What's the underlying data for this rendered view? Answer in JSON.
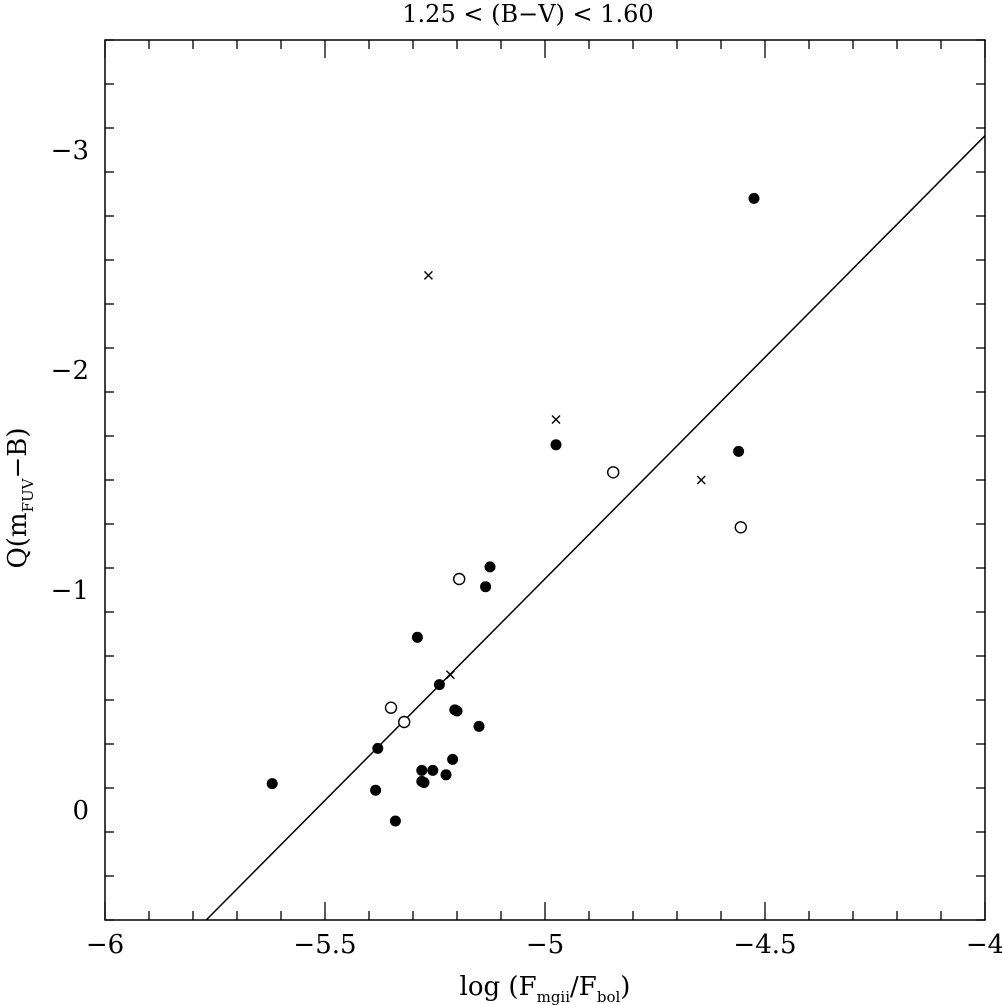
{
  "chart_data": {
    "type": "scatter",
    "title": "1.25 < (B−V) < 1.60",
    "xlabel": {
      "prefix": "log (F",
      "sub1": "mgii",
      "mid": "/F",
      "sub2": "bol",
      "suffix": ")"
    },
    "ylabel": {
      "prefix": "Q(m",
      "sub": "FUV",
      "suffix": "−B)"
    },
    "xlim": [
      -6,
      -4
    ],
    "ylim": [
      0.5,
      -3.5
    ],
    "x_ticks": [
      -6,
      -5.5,
      -5,
      -4.5,
      -4
    ],
    "x_tick_labels": [
      "−6",
      "−5.5",
      "−5",
      "−4.5",
      "−4"
    ],
    "y_ticks": [
      -3,
      -2,
      -1,
      0
    ],
    "y_tick_labels": [
      "−3",
      "−2",
      "−1",
      "0"
    ],
    "series": [
      {
        "marker": "filled-circle",
        "points": [
          [
            -5.62,
            -0.12
          ],
          [
            -5.38,
            -0.28
          ],
          [
            -5.385,
            -0.09
          ],
          [
            -5.34,
            0.05
          ],
          [
            -5.29,
            -0.785
          ],
          [
            -5.28,
            -0.18
          ],
          [
            -5.28,
            -0.13
          ],
          [
            -5.275,
            -0.125
          ],
          [
            -5.255,
            -0.18
          ],
          [
            -5.24,
            -0.57
          ],
          [
            -5.225,
            -0.16
          ],
          [
            -5.21,
            -0.23
          ],
          [
            -5.205,
            -0.455
          ],
          [
            -5.2,
            -0.45
          ],
          [
            -5.15,
            -0.38
          ],
          [
            -5.135,
            -1.015
          ],
          [
            -5.125,
            -1.105
          ],
          [
            -4.975,
            -1.66
          ],
          [
            -4.56,
            -1.63
          ],
          [
            -4.525,
            -2.78
          ]
        ]
      },
      {
        "marker": "open-circle",
        "points": [
          [
            -5.35,
            -0.465
          ],
          [
            -5.32,
            -0.4
          ],
          [
            -5.195,
            -1.05
          ],
          [
            -4.845,
            -1.535
          ],
          [
            -4.555,
            -1.285
          ]
        ]
      },
      {
        "marker": "cross",
        "points": [
          [
            -5.265,
            -2.43
          ],
          [
            -4.975,
            -1.775
          ],
          [
            -4.645,
            -1.5
          ],
          [
            -5.215,
            -0.615
          ]
        ]
      }
    ],
    "fit_line": {
      "points": [
        [
          -5.77,
          0.5
        ],
        [
          -4,
          -3.065
        ]
      ]
    }
  }
}
